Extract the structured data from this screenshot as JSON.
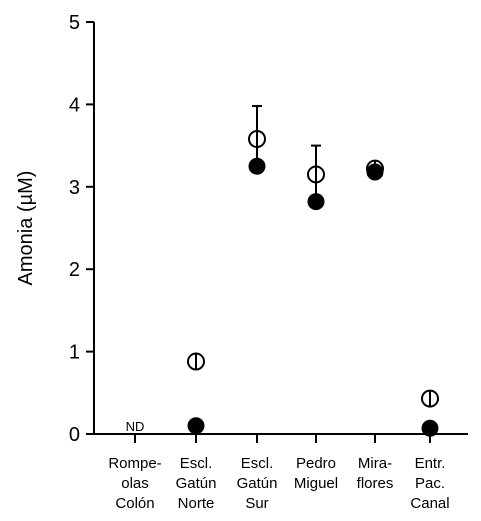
{
  "chart_data": {
    "type": "scatter",
    "title": "",
    "xlabel": "",
    "ylabel": "Amonia (µM)",
    "ylim": [
      0,
      5
    ],
    "yticks": [
      "0",
      "1",
      "2",
      "3",
      "4",
      "5"
    ],
    "grid": false,
    "categories": [
      [
        "Rompe-",
        "olas",
        "Colón"
      ],
      [
        "Escl.",
        "Gatún",
        "Norte"
      ],
      [
        "Escl.",
        "Gatún",
        "Sur"
      ],
      [
        "Pedro",
        "Miguel"
      ],
      [
        "Mira-",
        "flores"
      ],
      [
        "Entr.",
        "Pac.",
        "Canal"
      ]
    ],
    "series": [
      {
        "marker": "open-circle",
        "values": [
          null,
          0.88,
          3.58,
          3.15,
          3.22,
          0.43
        ],
        "error": [
          null,
          0.05,
          0.4,
          0.35,
          0.05,
          0.05
        ]
      },
      {
        "marker": "filled-circle",
        "values": [
          null,
          0.1,
          3.25,
          2.82,
          3.18,
          0.07
        ],
        "error": [
          null,
          0,
          0,
          0,
          0,
          0
        ]
      }
    ],
    "annotations": [
      {
        "text": "ND",
        "category_index": 0,
        "y": 0.1
      }
    ]
  }
}
